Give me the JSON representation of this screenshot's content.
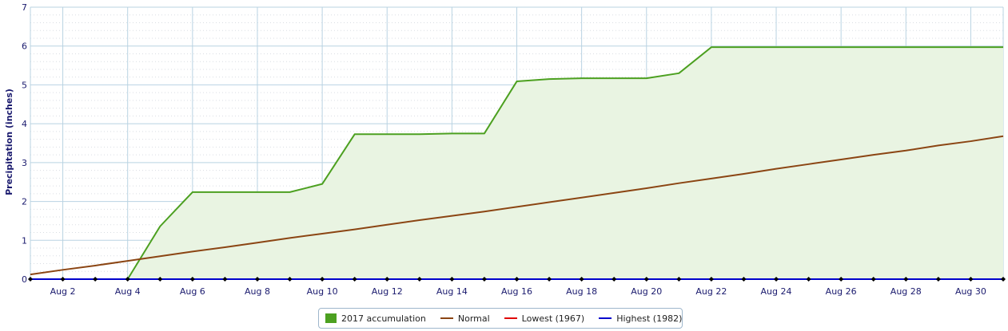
{
  "chart_data": {
    "type": "area",
    "ylabel": "Precipitation (inches)",
    "xlabel": "",
    "ylim": [
      0,
      7
    ],
    "yticks": [
      0,
      1,
      2,
      3,
      4,
      5,
      6,
      7
    ],
    "xlim": [
      "Aug 1",
      "Aug 31"
    ],
    "x_tick_labels": [
      "Aug 2",
      "Aug 4",
      "Aug 6",
      "Aug 8",
      "Aug 10",
      "Aug 12",
      "Aug 14",
      "Aug 16",
      "Aug 18",
      "Aug 20",
      "Aug 22",
      "Aug 24",
      "Aug 26",
      "Aug 28",
      "Aug 30"
    ],
    "x": [
      "Aug 1",
      "Aug 2",
      "Aug 3",
      "Aug 4",
      "Aug 5",
      "Aug 6",
      "Aug 7",
      "Aug 8",
      "Aug 9",
      "Aug 10",
      "Aug 11",
      "Aug 12",
      "Aug 13",
      "Aug 14",
      "Aug 15",
      "Aug 16",
      "Aug 17",
      "Aug 18",
      "Aug 19",
      "Aug 20",
      "Aug 21",
      "Aug 22",
      "Aug 23",
      "Aug 24",
      "Aug 25",
      "Aug 26",
      "Aug 27",
      "Aug 28",
      "Aug 29",
      "Aug 30",
      "Aug 31"
    ],
    "grid": true,
    "legend_position": "bottom-center",
    "series": [
      {
        "name": "2017 accumulation",
        "style": "area",
        "color": "#4ca020",
        "fill": "#e9f4e2",
        "values": [
          0,
          0,
          0,
          0,
          1.36,
          2.24,
          2.24,
          2.24,
          2.24,
          2.45,
          3.73,
          3.73,
          3.73,
          3.75,
          3.75,
          5.09,
          5.15,
          5.17,
          5.17,
          5.17,
          5.3,
          5.97,
          5.97,
          5.97,
          5.97,
          5.97,
          5.97,
          5.97,
          5.97,
          5.97,
          5.97
        ]
      },
      {
        "name": "Normal",
        "style": "line",
        "color": "#8b4513",
        "values": [
          0.12,
          0.24,
          0.35,
          0.47,
          0.59,
          0.71,
          0.82,
          0.94,
          1.06,
          1.17,
          1.28,
          1.4,
          1.52,
          1.63,
          1.74,
          1.86,
          1.98,
          2.1,
          2.22,
          2.34,
          2.47,
          2.59,
          2.71,
          2.84,
          2.96,
          3.08,
          3.2,
          3.31,
          3.44,
          3.55,
          3.68
        ]
      },
      {
        "name": "Lowest (1967)",
        "style": "line",
        "color": "#e00000",
        "values": [
          0,
          0,
          0,
          0,
          0,
          0,
          0,
          0,
          0,
          0,
          0,
          0,
          0,
          0,
          0,
          0,
          0,
          0,
          0,
          0,
          0,
          0,
          0,
          0,
          0,
          0,
          0,
          0,
          0,
          0,
          0
        ]
      },
      {
        "name": "Highest (1982)",
        "style": "line",
        "color": "#0000cc",
        "values": [
          0,
          0,
          0,
          0,
          0,
          0,
          0,
          0,
          0,
          0,
          0,
          0,
          0,
          0,
          0,
          0,
          0,
          0,
          0,
          0,
          0,
          0,
          0,
          0,
          0,
          0,
          0,
          0,
          0,
          0,
          0
        ]
      }
    ]
  }
}
